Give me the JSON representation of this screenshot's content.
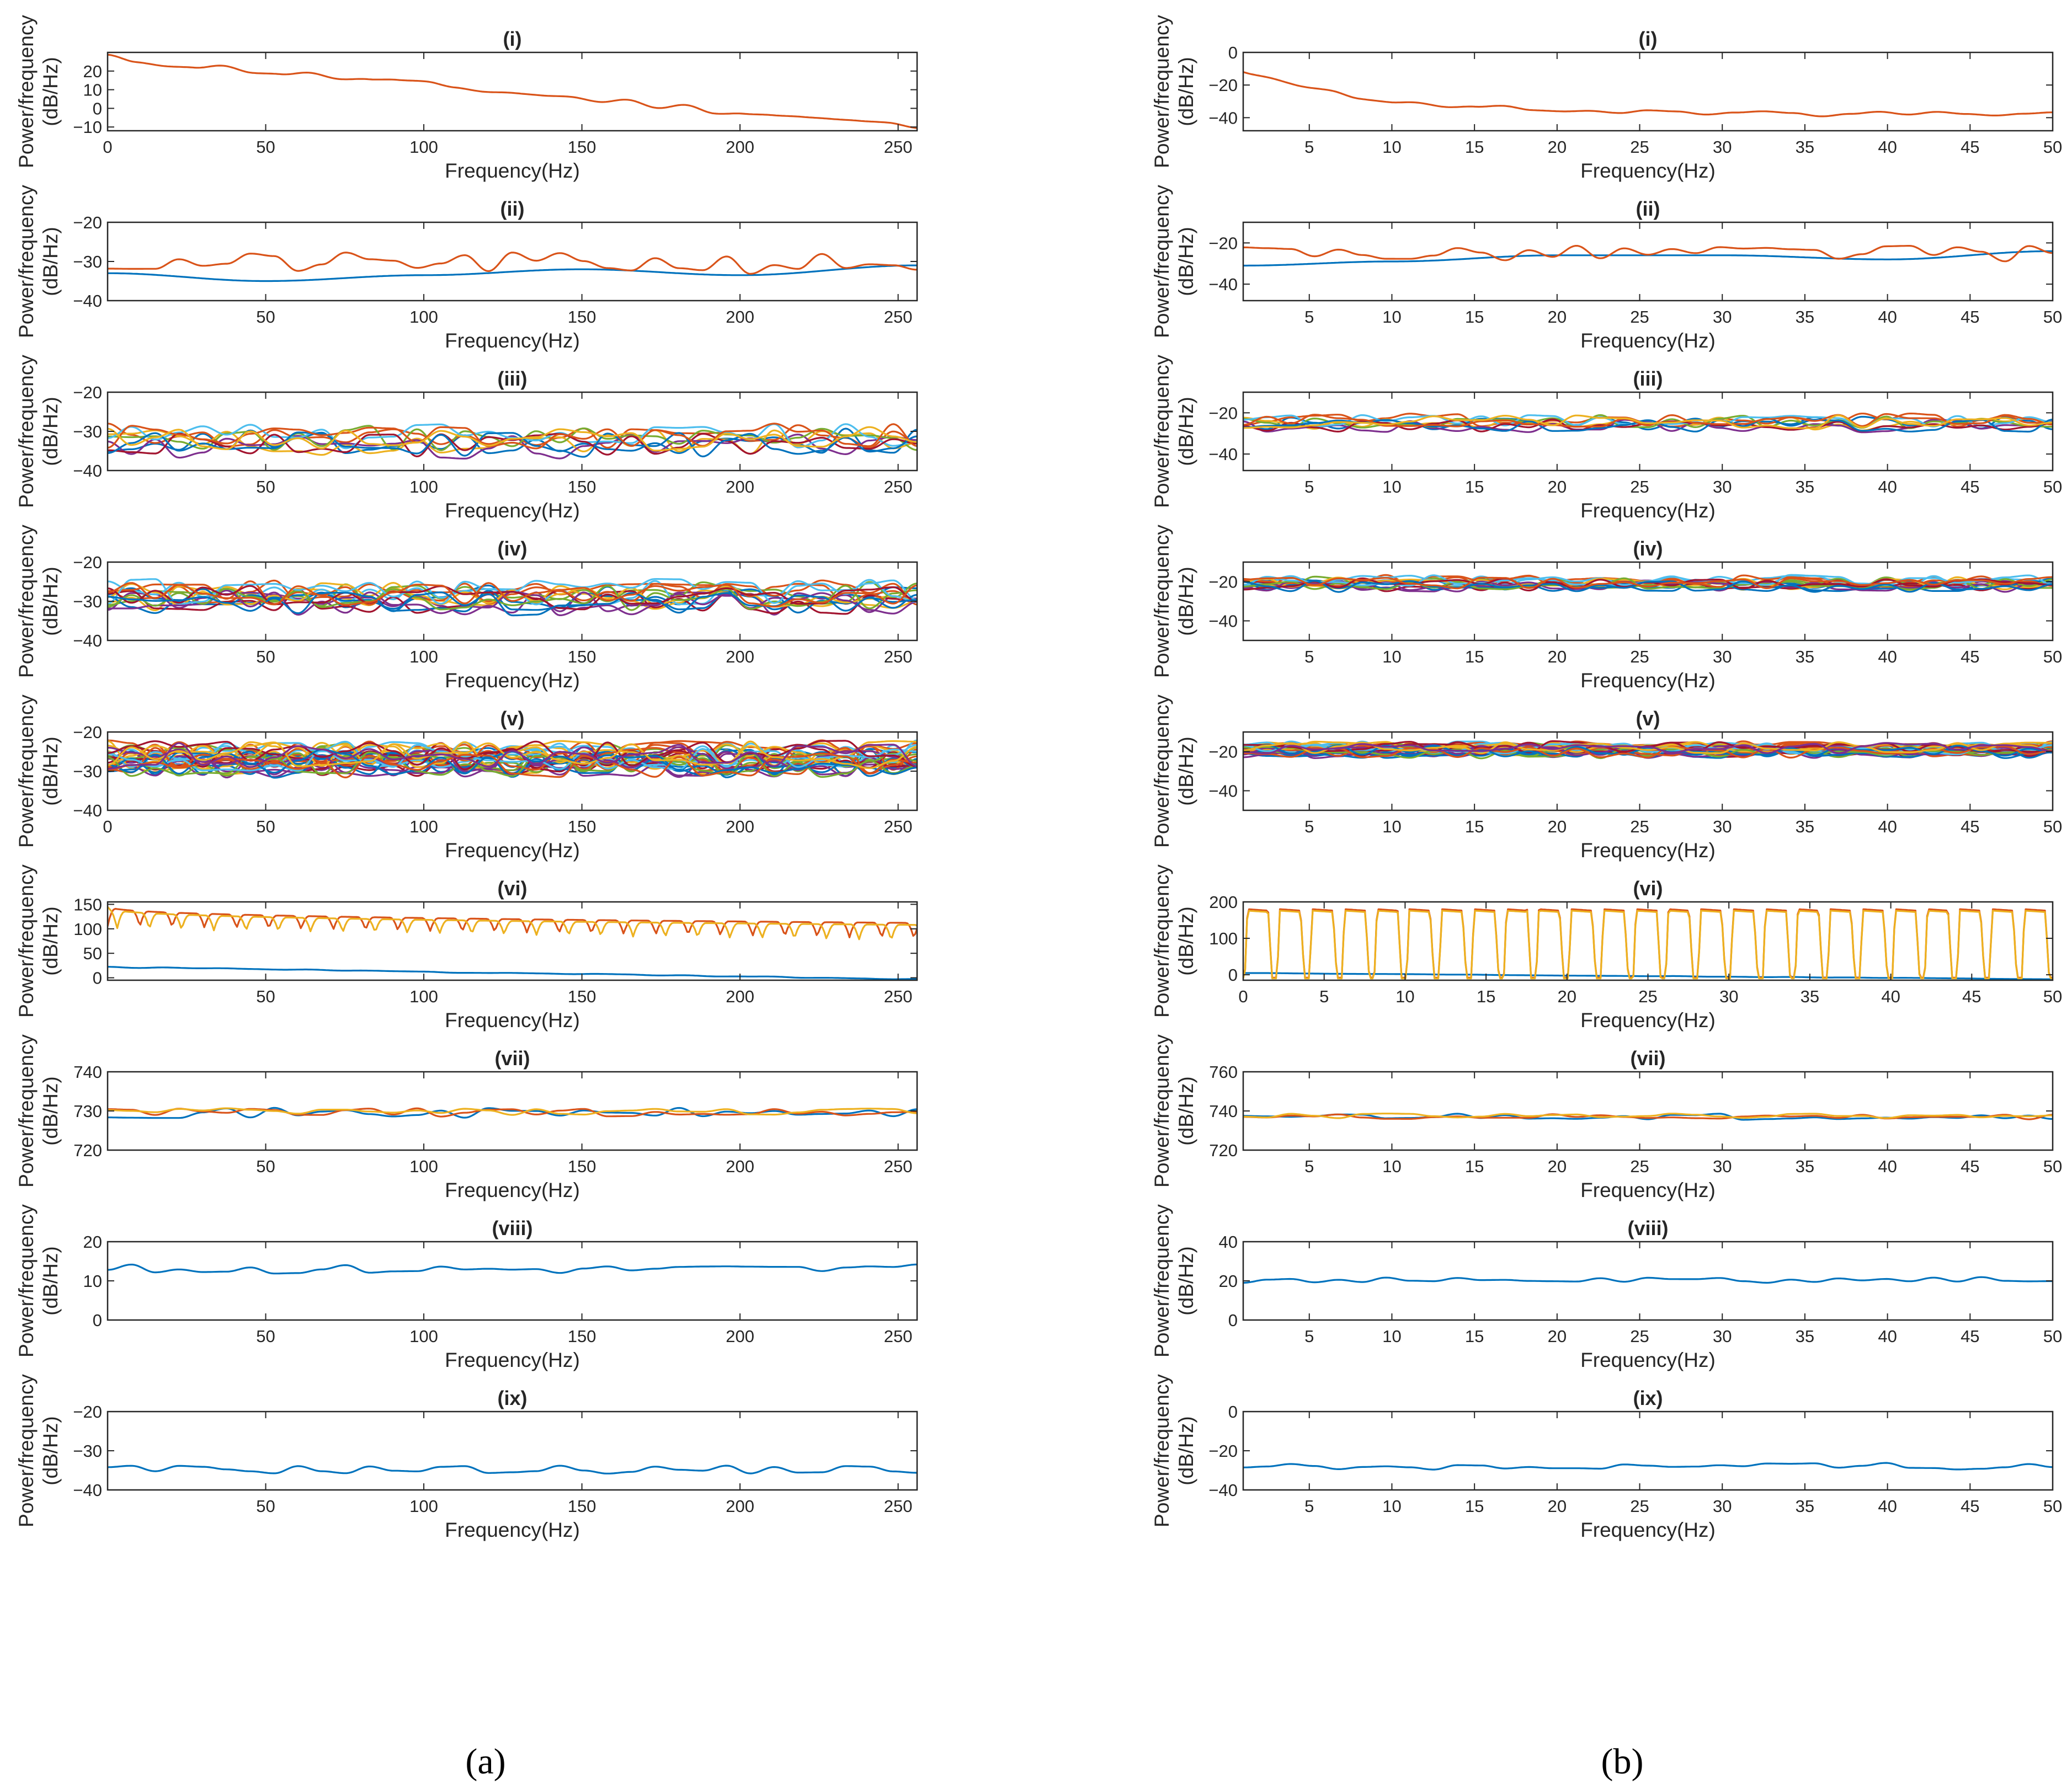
{
  "caption_a": "(a)",
  "caption_b": "(b)",
  "colors": {
    "blue": "#0072BD",
    "orange": "#D95319",
    "yellow": "#EDB120",
    "purple": "#7E2F8E",
    "green": "#77AC30",
    "cyan": "#4DBEEE",
    "darkred": "#A2142F"
  },
  "chart_data": [
    {
      "panel": "a",
      "type": "line",
      "title": "(i)",
      "xlabel": "Frequency(Hz)",
      "ylabel": [
        "Power/frequency",
        "(dB/Hz)"
      ],
      "xlim": [
        0,
        256
      ],
      "ylim": [
        -12,
        30
      ],
      "xticks": [
        0,
        50,
        100,
        150,
        200,
        250
      ],
      "yticks": [
        -10,
        0,
        10,
        20
      ],
      "series": [
        {
          "name": "orange",
          "color": "#D95319",
          "kind": "decay",
          "start": 27,
          "end": -10,
          "amp": 2.2,
          "seed": 11
        }
      ]
    },
    {
      "panel": "a",
      "type": "line",
      "title": "(ii)",
      "xlabel": "Frequency(Hz)",
      "ylabel": [
        "Power/frequency",
        "(dB/Hz)"
      ],
      "xlim": [
        0,
        256
      ],
      "ylim": [
        -40,
        -20
      ],
      "xticks": [
        50,
        100,
        150,
        200,
        250
      ],
      "yticks": [
        -40,
        -30,
        -20
      ],
      "series": [
        {
          "name": "blue",
          "color": "#0072BD",
          "kind": "smooth",
          "points": [
            [
              0,
              -33
            ],
            [
              50,
              -35
            ],
            [
              100,
              -33.5
            ],
            [
              150,
              -32
            ],
            [
              200,
              -33.5
            ],
            [
              256,
              -31
            ]
          ]
        },
        {
          "name": "orange",
          "color": "#D95319",
          "kind": "noise",
          "base": -30.5,
          "amp": 2.8,
          "seed": 21
        }
      ]
    },
    {
      "panel": "a",
      "type": "line",
      "title": "(iii)",
      "xlabel": "Frequency(Hz)",
      "ylabel": [
        "Power/frequency",
        "(dB/Hz)"
      ],
      "xlim": [
        0,
        256
      ],
      "ylim": [
        -40,
        -20
      ],
      "xticks": [
        50,
        100,
        150,
        200,
        250
      ],
      "yticks": [
        -40,
        -30,
        -20
      ],
      "series": [
        {
          "name": "multi",
          "kind": "multi",
          "count": 10,
          "base": -32.5,
          "amp": 3.2,
          "seed": 31
        }
      ]
    },
    {
      "panel": "a",
      "type": "line",
      "title": "(iv)",
      "xlabel": "Frequency(Hz)",
      "ylabel": [
        "Power/frequency",
        "(dB/Hz)"
      ],
      "xlim": [
        0,
        256
      ],
      "ylim": [
        -40,
        -20
      ],
      "xticks": [
        50,
        100,
        150,
        200,
        250
      ],
      "yticks": [
        -40,
        -30,
        -20
      ],
      "series": [
        {
          "name": "multi",
          "kind": "multi",
          "count": 16,
          "base": -29,
          "amp": 3.2,
          "seed": 41
        }
      ]
    },
    {
      "panel": "a",
      "type": "line",
      "title": "(v)",
      "xlabel": "Frequency(Hz)",
      "ylabel": [
        "Power/frequency",
        "(dB/Hz)"
      ],
      "xlim": [
        0,
        256
      ],
      "ylim": [
        -40,
        -20
      ],
      "xticks": [
        0,
        50,
        100,
        150,
        200,
        250
      ],
      "yticks": [
        -40,
        -30,
        -20
      ],
      "series": [
        {
          "name": "multi",
          "kind": "multi",
          "count": 32,
          "base": -27,
          "amp": 3.4,
          "seed": 51
        }
      ]
    },
    {
      "panel": "a",
      "type": "line",
      "title": "(vi)",
      "xlabel": "Frequency(Hz)",
      "ylabel": [
        "Power/frequency",
        "(dB/Hz)"
      ],
      "xlim": [
        0,
        256
      ],
      "ylim": [
        -5,
        155
      ],
      "xticks": [
        50,
        100,
        150,
        200,
        250
      ],
      "yticks": [
        0,
        50,
        100,
        150
      ],
      "series": [
        {
          "name": "blue",
          "color": "#0072BD",
          "kind": "decay",
          "start": 22,
          "end": -3,
          "amp": 1.2,
          "seed": 61
        },
        {
          "name": "orange",
          "color": "#D95319",
          "kind": "comb",
          "top": [
            148,
            112
          ],
          "dip": [
            105,
            80
          ],
          "period": 10.2,
          "width": 2.5,
          "offset": 0
        },
        {
          "name": "yellow",
          "color": "#EDB120",
          "kind": "comb",
          "top": [
            145,
            108
          ],
          "dip": [
            100,
            75
          ],
          "period": 10.2,
          "width": 2.5,
          "offset": -3
        }
      ]
    },
    {
      "panel": "a",
      "type": "line",
      "title": "(vii)",
      "xlabel": "Frequency(Hz)",
      "ylabel": [
        "Power/frequency",
        "(dB/Hz)"
      ],
      "xlim": [
        0,
        256
      ],
      "ylim": [
        720,
        740
      ],
      "xticks": [
        50,
        100,
        150,
        200,
        250
      ],
      "yticks": [
        720,
        730,
        740
      ],
      "series": [
        {
          "name": "blue",
          "color": "#0072BD",
          "kind": "noise",
          "base": 729.5,
          "amp": 1.3,
          "seed": 71
        },
        {
          "name": "orange",
          "color": "#D95319",
          "kind": "noise",
          "base": 729.6,
          "amp": 1.1,
          "seed": 72
        },
        {
          "name": "yellow",
          "color": "#EDB120",
          "kind": "noise",
          "base": 729.8,
          "amp": 0.9,
          "seed": 73
        }
      ]
    },
    {
      "panel": "a",
      "type": "line",
      "title": "(viii)",
      "xlabel": "Frequency(Hz)",
      "ylabel": [
        "Power/frequency",
        "(dB/Hz)"
      ],
      "xlim": [
        0,
        256
      ],
      "ylim": [
        0,
        20
      ],
      "xticks": [
        50,
        100,
        150,
        200,
        250
      ],
      "yticks": [
        0,
        10,
        20
      ],
      "series": [
        {
          "name": "blue",
          "color": "#0072BD",
          "kind": "noise",
          "base": 13,
          "amp": 1.2,
          "seed": 81
        }
      ]
    },
    {
      "panel": "a",
      "type": "line",
      "title": "(ix)",
      "xlabel": "Frequency(Hz)",
      "ylabel": [
        "Power/frequency",
        "(dB/Hz)"
      ],
      "xlim": [
        0,
        256
      ],
      "ylim": [
        -40,
        -20
      ],
      "xticks": [
        50,
        100,
        150,
        200,
        250
      ],
      "yticks": [
        -40,
        -30,
        -20
      ],
      "series": [
        {
          "name": "blue",
          "color": "#0072BD",
          "kind": "noise",
          "base": -34.8,
          "amp": 1.1,
          "seed": 91
        }
      ]
    },
    {
      "panel": "b",
      "type": "line",
      "title": "(i)",
      "xlabel": "Frequency(Hz)",
      "ylabel": [
        "Power/frequency",
        "(dB/Hz)"
      ],
      "xlim": [
        1,
        50
      ],
      "ylim": [
        -48,
        0
      ],
      "xticks": [
        5,
        10,
        15,
        20,
        25,
        30,
        35,
        40,
        45,
        50
      ],
      "yticks": [
        -40,
        -20,
        0
      ],
      "series": [
        {
          "name": "orange",
          "color": "#D95319",
          "kind": "decay",
          "start": -12,
          "end": -38,
          "amp": 1.6,
          "seed": 111,
          "fast": true
        }
      ]
    },
    {
      "panel": "b",
      "type": "line",
      "title": "(ii)",
      "xlabel": "Frequency(Hz)",
      "ylabel": [
        "Power/frequency",
        "(dB/Hz)"
      ],
      "xlim": [
        1,
        50
      ],
      "ylim": [
        -48,
        -10
      ],
      "xticks": [
        5,
        10,
        15,
        20,
        25,
        30,
        35,
        40,
        45,
        50
      ],
      "yticks": [
        -40,
        -20
      ],
      "series": [
        {
          "name": "blue",
          "color": "#0072BD",
          "kind": "smooth",
          "points": [
            [
              1,
              -31
            ],
            [
              10,
              -29
            ],
            [
              20,
              -26
            ],
            [
              30,
              -26
            ],
            [
              40,
              -28
            ],
            [
              50,
              -24
            ]
          ]
        },
        {
          "name": "orange",
          "color": "#D95319",
          "kind": "noise",
          "base": -25,
          "amp": 4,
          "seed": 121
        }
      ]
    },
    {
      "panel": "b",
      "type": "line",
      "title": "(iii)",
      "xlabel": "Frequency(Hz)",
      "ylabel": [
        "Power/frequency",
        "(dB/Hz)"
      ],
      "xlim": [
        1,
        50
      ],
      "ylim": [
        -48,
        -10
      ],
      "xticks": [
        5,
        10,
        15,
        20,
        25,
        30,
        35,
        40,
        45,
        50
      ],
      "yticks": [
        -40,
        -20
      ],
      "series": [
        {
          "name": "multi",
          "kind": "multi",
          "count": 10,
          "base": -25,
          "amp": 3.2,
          "seed": 131
        }
      ]
    },
    {
      "panel": "b",
      "type": "line",
      "title": "(iv)",
      "xlabel": "Frequency(Hz)",
      "ylabel": [
        "Power/frequency",
        "(dB/Hz)"
      ],
      "xlim": [
        1,
        50
      ],
      "ylim": [
        -50,
        -10
      ],
      "xticks": [
        5,
        10,
        15,
        20,
        25,
        30,
        35,
        40,
        45,
        50
      ],
      "yticks": [
        -40,
        -20
      ],
      "series": [
        {
          "name": "multi",
          "kind": "multi",
          "count": 16,
          "base": -21,
          "amp": 3,
          "seed": 141
        }
      ]
    },
    {
      "panel": "b",
      "type": "line",
      "title": "(v)",
      "xlabel": "Frequency(Hz)",
      "ylabel": [
        "Power/frequency",
        "(dB/Hz)"
      ],
      "xlim": [
        1,
        50
      ],
      "ylim": [
        -50,
        -10
      ],
      "xticks": [
        5,
        10,
        15,
        20,
        25,
        30,
        35,
        40,
        45,
        50
      ],
      "yticks": [
        -40,
        -20
      ],
      "series": [
        {
          "name": "multi",
          "kind": "multi",
          "count": 32,
          "base": -19,
          "amp": 3,
          "seed": 151
        }
      ]
    },
    {
      "panel": "b",
      "type": "line",
      "title": "(vi)",
      "xlabel": "Frequency(Hz)",
      "ylabel": [
        "Power/frequency",
        "(dB/Hz)"
      ],
      "xlim": [
        0,
        50
      ],
      "ylim": [
        -15,
        200
      ],
      "xticks": [
        0,
        5,
        10,
        15,
        20,
        25,
        30,
        35,
        40,
        45,
        50
      ],
      "yticks": [
        0,
        100,
        200
      ],
      "series": [
        {
          "name": "blue",
          "color": "#0072BD",
          "kind": "decay",
          "start": 5,
          "end": -12,
          "amp": 0.6,
          "seed": 161
        },
        {
          "name": "orange",
          "color": "#D95319",
          "kind": "square",
          "high": 180,
          "low": -8,
          "period": 2.0,
          "duty": 0.72,
          "offset": 0.1
        },
        {
          "name": "yellow",
          "color": "#EDB120",
          "kind": "square",
          "high": 176,
          "low": -10,
          "period": 2.0,
          "duty": 0.72,
          "offset": 0.1
        }
      ]
    },
    {
      "panel": "b",
      "type": "line",
      "title": "(vii)",
      "xlabel": "Frequency(Hz)",
      "ylabel": [
        "Power/frequency",
        "(dB/Hz)"
      ],
      "xlim": [
        1,
        50
      ],
      "ylim": [
        720,
        760
      ],
      "xticks": [
        5,
        10,
        15,
        20,
        25,
        30,
        35,
        40,
        45,
        50
      ],
      "yticks": [
        720,
        740,
        760
      ],
      "series": [
        {
          "name": "blue",
          "color": "#0072BD",
          "kind": "noise",
          "base": 737,
          "amp": 1.6,
          "seed": 171
        },
        {
          "name": "orange",
          "color": "#D95319",
          "kind": "noise",
          "base": 737,
          "amp": 1.4,
          "seed": 172
        },
        {
          "name": "yellow",
          "color": "#EDB120",
          "kind": "noise",
          "base": 737.5,
          "amp": 1.2,
          "seed": 173
        }
      ]
    },
    {
      "panel": "b",
      "type": "line",
      "title": "(viii)",
      "xlabel": "Frequency(Hz)",
      "ylabel": [
        "Power/frequency",
        "(dB/Hz)"
      ],
      "xlim": [
        1,
        50
      ],
      "ylim": [
        0,
        40
      ],
      "xticks": [
        5,
        10,
        15,
        20,
        25,
        30,
        35,
        40,
        45,
        50
      ],
      "yticks": [
        0,
        20,
        40
      ],
      "series": [
        {
          "name": "blue",
          "color": "#0072BD",
          "kind": "noise",
          "base": 20.5,
          "amp": 1.5,
          "seed": 181
        }
      ]
    },
    {
      "panel": "b",
      "type": "line",
      "title": "(ix)",
      "xlabel": "Frequency(Hz)",
      "ylabel": [
        "Power/frequency",
        "(dB/Hz)"
      ],
      "xlim": [
        1,
        50
      ],
      "ylim": [
        -40,
        0
      ],
      "xticks": [
        5,
        10,
        15,
        20,
        25,
        30,
        35,
        40,
        45,
        50
      ],
      "yticks": [
        -40,
        -20,
        0
      ],
      "series": [
        {
          "name": "blue",
          "color": "#0072BD",
          "kind": "noise",
          "base": -28,
          "amp": 2,
          "seed": 191
        }
      ]
    }
  ]
}
